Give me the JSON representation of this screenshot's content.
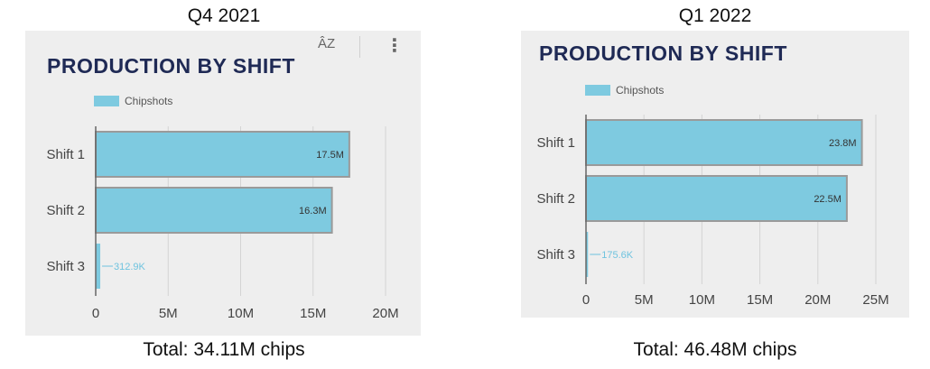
{
  "panels": [
    {
      "period": "Q4 2021",
      "total": "Total: 34.11M chips",
      "show_toolbar": true,
      "toolbar": {
        "sort_icon": "sort-az-icon",
        "menu_icon": "more-vert-icon"
      },
      "sort_label": "ÂZ",
      "menu_label": "⋮"
    },
    {
      "period": "Q1 2022",
      "total": "Total: 46.48M chips",
      "show_toolbar": false
    }
  ],
  "colors": {
    "bar": "#7ecae0",
    "bar_border": "#9a9a9a",
    "title": "#1f2a55",
    "small_label": "#6fc3df",
    "grid": "#d4d4d4"
  },
  "chart_data": [
    {
      "type": "bar",
      "orientation": "horizontal",
      "title": "PRODUCTION BY SHIFT",
      "legend": [
        "Chipshots"
      ],
      "legend_position": "top-left",
      "categories": [
        "Shift 1",
        "Shift 2",
        "Shift 3"
      ],
      "series": [
        {
          "name": "Chipshots",
          "values": [
            17.5,
            16.3,
            0.3129
          ]
        }
      ],
      "data_labels": [
        "17.5M",
        "16.3M",
        "312.9K"
      ],
      "x_ticks": [
        "0",
        "5M",
        "10M",
        "15M",
        "20M"
      ],
      "xlim": [
        0,
        20
      ],
      "grid": true
    },
    {
      "type": "bar",
      "orientation": "horizontal",
      "title": "PRODUCTION BY SHIFT",
      "legend": [
        "Chipshots"
      ],
      "legend_position": "top-left",
      "categories": [
        "Shift 1",
        "Shift 2",
        "Shift 3"
      ],
      "series": [
        {
          "name": "Chipshots",
          "values": [
            23.8,
            22.5,
            0.1756
          ]
        }
      ],
      "data_labels": [
        "23.8M",
        "22.5M",
        "175.6K"
      ],
      "x_ticks": [
        "0",
        "5M",
        "10M",
        "15M",
        "20M",
        "25M"
      ],
      "xlim": [
        0,
        25
      ],
      "grid": true
    }
  ]
}
